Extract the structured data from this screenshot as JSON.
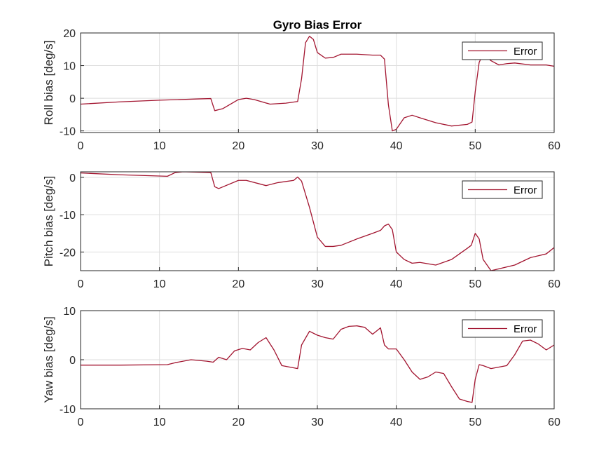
{
  "figure": {
    "title": "Gyro Bias Error"
  },
  "colors": {
    "line": "#a2142f",
    "background": "#ffffff",
    "axes": "#262626",
    "grid": "#dedede"
  },
  "chart_data": [
    {
      "type": "line",
      "title": "Gyro Bias Error",
      "xlabel": "",
      "ylabel": "Roll bias [deg/s]",
      "xlim": [
        0,
        60
      ],
      "ylim": [
        -10.5,
        20
      ],
      "xticks": [
        0,
        10,
        20,
        30,
        40,
        50,
        60
      ],
      "yticks": [
        -10,
        0,
        10,
        20
      ],
      "grid": true,
      "legend": {
        "position": "top-right",
        "entries": [
          "Error"
        ]
      },
      "series": [
        {
          "name": "Error",
          "x": [
            0,
            5,
            10,
            15,
            16.5,
            17,
            18,
            20,
            21,
            22,
            24,
            26,
            27.5,
            28,
            28.5,
            29,
            29.5,
            30,
            31,
            32,
            33,
            35,
            37,
            38,
            38.5,
            39,
            39.5,
            40,
            41,
            42,
            43,
            45,
            47,
            49,
            49.6,
            50,
            50.5,
            51,
            51.5,
            52,
            53,
            54,
            55,
            57,
            59,
            60
          ],
          "y": [
            -1.8,
            -1.1,
            -0.6,
            -0.2,
            -0.1,
            -3.8,
            -3.2,
            -0.4,
            0,
            -0.4,
            -1.8,
            -1.5,
            -1.0,
            6,
            17,
            19,
            18,
            14,
            12.3,
            12.5,
            13.5,
            13.5,
            13.2,
            13.2,
            12,
            -2,
            -10,
            -9.5,
            -6,
            -5.2,
            -6,
            -7.5,
            -8.5,
            -8,
            -7.3,
            2,
            11,
            13.5,
            12.5,
            11.5,
            10.2,
            10.6,
            10.8,
            10.2,
            10.2,
            9.8
          ]
        }
      ]
    },
    {
      "type": "line",
      "xlabel": "",
      "ylabel": "Pitch bias [deg/s]",
      "xlim": [
        0,
        60
      ],
      "ylim": [
        -25,
        1.5
      ],
      "xticks": [
        0,
        10,
        20,
        30,
        40,
        50,
        60
      ],
      "yticks": [
        -20,
        -10,
        0
      ],
      "grid": true,
      "legend": {
        "position": "top-right",
        "entries": [
          "Error"
        ]
      },
      "series": [
        {
          "name": "Error",
          "x": [
            0,
            5,
            11,
            12,
            13,
            16.5,
            17,
            17.5,
            20,
            21,
            23.5,
            25,
            27,
            27.5,
            28,
            29,
            30,
            31,
            32,
            33,
            35,
            37,
            38,
            38.5,
            39,
            39.5,
            40,
            41,
            42,
            43,
            45,
            47,
            49,
            49.5,
            50,
            50.5,
            51,
            52,
            53,
            55,
            57,
            59,
            60
          ],
          "y": [
            1.2,
            0.7,
            0.3,
            1.3,
            1.5,
            1.3,
            -2.5,
            -3,
            -0.8,
            -0.8,
            -2.2,
            -1.4,
            -0.8,
            0.1,
            -1,
            -8,
            -16,
            -18.5,
            -18.5,
            -18.2,
            -16.5,
            -15,
            -14.2,
            -13,
            -12.5,
            -14,
            -20,
            -22,
            -23,
            -22.8,
            -23.5,
            -22,
            -19,
            -18.2,
            -15,
            -16.5,
            -22,
            -25,
            -24.5,
            -23.5,
            -21.5,
            -20.5,
            -18.8
          ]
        }
      ]
    },
    {
      "type": "line",
      "xlabel": "",
      "ylabel": "Yaw bias [deg/s]",
      "xlim": [
        0,
        60
      ],
      "ylim": [
        -10,
        10
      ],
      "xticks": [
        0,
        10,
        20,
        30,
        40,
        50,
        60
      ],
      "yticks": [
        -10,
        0,
        10
      ],
      "grid": true,
      "legend": {
        "position": "top-right",
        "entries": [
          "Error"
        ]
      },
      "series": [
        {
          "name": "Error",
          "x": [
            0,
            5,
            11,
            12,
            14,
            16,
            16.8,
            17.5,
            18.5,
            19.5,
            20.5,
            21.5,
            22.5,
            23.5,
            24.5,
            25.5,
            26.5,
            27.5,
            28,
            29,
            30,
            31,
            32,
            33,
            34,
            35,
            36,
            37,
            38,
            38.5,
            39,
            40,
            41,
            42,
            43,
            44,
            45,
            46,
            47,
            48,
            49,
            49.6,
            50,
            50.5,
            51,
            52,
            53,
            54,
            55,
            56,
            57,
            58,
            59,
            60
          ],
          "y": [
            -1.1,
            -1.1,
            -1.0,
            -0.6,
            0,
            -0.3,
            -0.5,
            0.5,
            0,
            1.8,
            2.3,
            2.0,
            3.5,
            4.5,
            2.0,
            -1.2,
            -1.5,
            -1.8,
            3,
            5.8,
            5.0,
            4.5,
            4.2,
            6.2,
            6.8,
            6.9,
            6.6,
            5.2,
            6.5,
            3.0,
            2.2,
            2.2,
            0,
            -2.5,
            -4.0,
            -3.5,
            -2.5,
            -2.8,
            -5.5,
            -8.0,
            -8.5,
            -8.7,
            -4,
            -1,
            -1.2,
            -1.8,
            -1.5,
            -1.2,
            1.0,
            3.8,
            4.0,
            3.2,
            2.0,
            3.0
          ]
        }
      ]
    }
  ]
}
